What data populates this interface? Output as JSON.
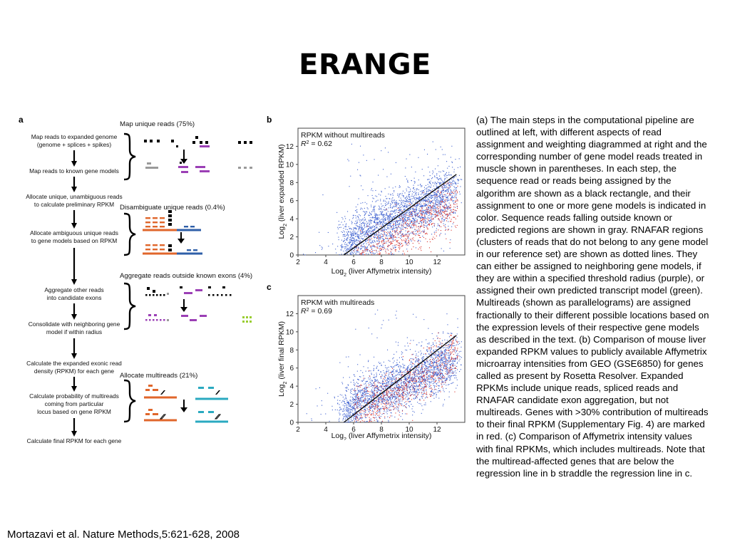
{
  "slide": {
    "title": "ERANGE",
    "citation": "Mortazavi et al. Nature Methods,5:621-628, 2008",
    "description": "(a) The main steps in the computational pipeline are outlined at left, with different aspects of read assignment and weighting diagrammed at right and the corresponding number of gene model reads treated in muscle shown in parentheses. In each step, the sequence read or reads being assigned by the algorithm are shown as a black rectangle, and their assignment to one or more gene models is indicated in color. Sequence reads falling outside known or predicted regions are shown in gray. RNAFAR regions (clusters of reads that do not belong to any gene model in our reference set) are shown as dotted lines. They can either be assigned to neighboring gene models, if they are within a specified threshold radius (purple), or assigned their own predicted transcript model (green). Multireads (shown as parallelograms) are assigned fractionally to their different possible locations based on the expression levels of their respective gene models as described in the text. (b) Comparison of mouse liver expanded RPKM values to publicly available Affymetrix microarray intensities from GEO (GSE6850) for genes called as present by Rosetta Resolver. Expanded RPKMs include unique reads, spliced reads and RNAFAR candidate exon aggregation, but not multireads. Genes with >30% contribution of multireads to their final RPKM (Supplementary Fig. 4) are marked in red. (c) Comparison of Affymetrix intensity values with final RPKMs, which includes multireads. Note that the multiread-affected genes that are below the regression line in b straddle the regression line in c."
  },
  "panel_a": {
    "label": "a",
    "colors": {
      "orange": "#e0662b",
      "blue": "#2f5fa8",
      "purple": "#9b3fb5",
      "gray": "#9a9a9a",
      "green": "#9acd32",
      "cyan": "#2aa9c0"
    },
    "steps": [
      [
        "Map reads to expanded genome",
        "(genome + splices + spikes)"
      ],
      [
        "Map reads to known gene models"
      ],
      [
        "Allocate unique, unambiguous reads",
        "to calculate preliminary RPKM"
      ],
      [
        "Allocate ambiguous unique reads",
        "to gene models based on RPKM"
      ],
      [
        "Aggregate other reads",
        "into candidate exons"
      ],
      [
        "Consolidate with neighboring gene",
        "model if within radius"
      ],
      [
        "Calculate the expanded exonic read",
        "density (RPKM) for each gene"
      ],
      [
        "Calculate probability of multireads",
        "coming from particular",
        "locus based on gene RPKM"
      ],
      [
        "Calculate final RPKM for each gene"
      ]
    ],
    "headings": [
      "Map unique reads (75%)",
      "Disambiguate unique reads (0.4%)",
      "Aggregate reads outside known exons (4%)",
      "Allocate multireads (21%)"
    ]
  },
  "chart_data": [
    {
      "type": "scatter",
      "panel_label": "b",
      "legend": [
        "RPKM without multireads",
        "R² = 0.62"
      ],
      "legend_title": "RPKM without multireads",
      "legend_r2_prefix": "R",
      "legend_r2_value": " = 0.62",
      "xlabel_pre": "Log",
      "xlabel_post": " (liver Affymetrix intensity)",
      "ylabel_pre": "Log",
      "ylabel_post": " (liver expanded RPKM)",
      "sub": "2",
      "xlim": [
        2,
        14
      ],
      "ylim": [
        0,
        14
      ],
      "xticks": [
        2,
        4,
        6,
        8,
        10,
        12
      ],
      "yticks": [
        0,
        2,
        4,
        6,
        8,
        10,
        12
      ],
      "regression_line": {
        "from": [
          5.3,
          0
        ],
        "to": [
          13.4,
          8.9
        ]
      },
      "series": [
        {
          "color": "#3c5fcf",
          "count": 2600
        },
        {
          "color": "#d9352f",
          "count": 700
        }
      ]
    },
    {
      "type": "scatter",
      "panel_label": "c",
      "legend_title": "RPKM with multireads",
      "legend_r2_prefix": "R",
      "legend_r2_value": " = 0.69",
      "xlabel_pre": "Log",
      "xlabel_post": " (liver Affymetrix intensity)",
      "ylabel_pre": "Log",
      "ylabel_post": " (liver final RPKM)",
      "sub": "2",
      "xlim": [
        2,
        14
      ],
      "ylim": [
        0,
        14
      ],
      "xticks": [
        2,
        4,
        6,
        8,
        10,
        12
      ],
      "yticks": [
        0,
        2,
        4,
        6,
        8,
        10,
        12
      ],
      "regression_line": {
        "from": [
          5.3,
          0
        ],
        "to": [
          13.4,
          9.6
        ]
      },
      "series": [
        {
          "color": "#3c5fcf",
          "count": 2600
        },
        {
          "color": "#d9352f",
          "count": 700
        }
      ]
    }
  ]
}
